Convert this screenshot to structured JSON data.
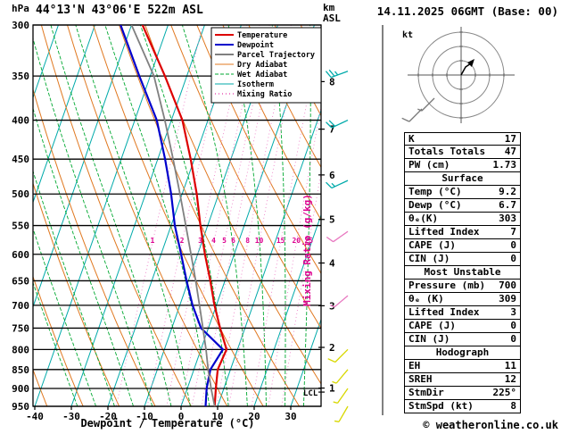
{
  "header": {
    "station_title": "44°13'N 43°06'E 522m ASL",
    "date_title": "14.11.2025 06GMT (Base: 00)"
  },
  "footer": {
    "copyright": "© weatheronline.co.uk"
  },
  "axes": {
    "pressure_unit": "hPa",
    "alt_unit_line1": "km",
    "alt_unit_line2": "ASL",
    "x_label": "Dewpoint / Temperature (°C)",
    "mixing_ratio_label": "Mixing Ratio (g/kg)",
    "lcl_label": "LCL",
    "hodo_unit": "kt"
  },
  "legend": {
    "items": [
      {
        "label": "Temperature",
        "color": "#DD0000",
        "width": 2,
        "dash": ""
      },
      {
        "label": "Dewpoint",
        "color": "#0000CC",
        "width": 2,
        "dash": ""
      },
      {
        "label": "Parcel Trajectory",
        "color": "#808080",
        "width": 2,
        "dash": ""
      },
      {
        "label": "Dry Adiabat",
        "color": "#E07820",
        "width": 1,
        "dash": ""
      },
      {
        "label": "Wet Adiabat",
        "color": "#00A830",
        "width": 1,
        "dash": "4 2"
      },
      {
        "label": "Isotherm",
        "color": "#00AAAA",
        "width": 1,
        "dash": ""
      },
      {
        "label": "Mixing Ratio",
        "color": "#DD0090",
        "width": 1,
        "dash": "1 3"
      }
    ]
  },
  "chart_data": {
    "type": "line",
    "title": "Skew-T log-P sounding 44°13'N 43°06'E 522m ASL",
    "xlabel": "Dewpoint / Temperature (°C)",
    "ylabel": "hPa",
    "pressure_range": [
      300,
      950
    ],
    "temp_axis_range": [
      -40,
      38
    ],
    "x_ticks": [
      -40,
      -30,
      -20,
      -10,
      0,
      10,
      20,
      30
    ],
    "pressure_levels": [
      300,
      350,
      400,
      450,
      500,
      550,
      600,
      650,
      700,
      750,
      800,
      850,
      900,
      950
    ],
    "km_asl_ticks": [
      8,
      7,
      6,
      5,
      4,
      3,
      2,
      1
    ],
    "lcl_pressure": 910,
    "mixing_ratio_labels": [
      1,
      2,
      3,
      4,
      5,
      6,
      8,
      10,
      15,
      20,
      25
    ],
    "colors": {
      "isotherm": "#00AAAA",
      "dry_adiabat": "#E07820",
      "wet_adiabat": "#00A830",
      "mixing_ratio_line": "#EE82C8",
      "mixing_ratio_label": "#DD0090",
      "barb_levels": {
        "high": "#00AAAA",
        "mid": "#E878C0",
        "low": "#D8D800"
      }
    },
    "series": [
      {
        "name": "Temperature",
        "color": "#DD0000",
        "width": 2.2,
        "points": [
          [
            950,
            9.2
          ],
          [
            900,
            7.8
          ],
          [
            850,
            6.5
          ],
          [
            800,
            7.0
          ],
          [
            750,
            3.2
          ],
          [
            700,
            -0.5
          ],
          [
            650,
            -4
          ],
          [
            600,
            -8
          ],
          [
            550,
            -12
          ],
          [
            500,
            -16
          ],
          [
            450,
            -21
          ],
          [
            400,
            -27
          ],
          [
            350,
            -36
          ],
          [
            300,
            -47
          ]
        ]
      },
      {
        "name": "Dewpoint",
        "color": "#0000CC",
        "width": 2.2,
        "points": [
          [
            950,
            6.7
          ],
          [
            900,
            5.3
          ],
          [
            850,
            4.5
          ],
          [
            800,
            6.0
          ],
          [
            750,
            -2
          ],
          [
            700,
            -6.5
          ],
          [
            650,
            -10.5
          ],
          [
            600,
            -14.5
          ],
          [
            550,
            -19
          ],
          [
            500,
            -23
          ],
          [
            450,
            -28
          ],
          [
            400,
            -34
          ],
          [
            350,
            -43
          ],
          [
            300,
            -53
          ]
        ]
      },
      {
        "name": "Parcel Trajectory",
        "color": "#808080",
        "width": 1.8,
        "points": [
          [
            950,
            9.2
          ],
          [
            900,
            6.5
          ],
          [
            850,
            3.9
          ],
          [
            800,
            1.4
          ],
          [
            750,
            -1.5
          ],
          [
            700,
            -4.6
          ],
          [
            650,
            -8
          ],
          [
            600,
            -11.8
          ],
          [
            550,
            -16
          ],
          [
            500,
            -20.6
          ],
          [
            450,
            -25.8
          ],
          [
            400,
            -31.8
          ],
          [
            350,
            -39
          ],
          [
            300,
            -50
          ]
        ]
      }
    ],
    "wind_barbs": [
      {
        "p": 345,
        "spd": 25,
        "dir": 250,
        "level": "high"
      },
      {
        "p": 400,
        "spd": 20,
        "dir": 245,
        "level": "high"
      },
      {
        "p": 480,
        "spd": 15,
        "dir": 245,
        "level": "high"
      },
      {
        "p": 560,
        "spd": 10,
        "dir": 235,
        "level": "mid"
      },
      {
        "p": 680,
        "spd": 5,
        "dir": 230,
        "level": "mid"
      },
      {
        "p": 800,
        "spd": 10,
        "dir": 225,
        "level": "low"
      },
      {
        "p": 850,
        "spd": 5,
        "dir": 220,
        "level": "low"
      },
      {
        "p": 900,
        "spd": 5,
        "dir": 215,
        "level": "low"
      },
      {
        "p": 950,
        "spd": 8,
        "dir": 210,
        "level": "low"
      }
    ]
  },
  "hodograph": {
    "rings": [
      16,
      32,
      48
    ],
    "trace": [
      [
        0,
        0
      ],
      [
        5,
        -9
      ],
      [
        11,
        -13
      ]
    ],
    "barbs": [
      [
        -30,
        26,
        225,
        5
      ],
      [
        -44,
        38,
        225,
        10
      ]
    ]
  },
  "panel": {
    "rows": [
      [
        "K",
        "17"
      ],
      [
        "Totals Totals",
        "47"
      ],
      [
        "PW (cm)",
        "1.73"
      ]
    ],
    "sections": [
      {
        "title": "Surface",
        "rows": [
          [
            "Temp (°C)",
            "9.2"
          ],
          [
            "Dewp (°C)",
            "6.7"
          ],
          [
            "θₑ(K)",
            "303"
          ],
          [
            "Lifted Index",
            "7"
          ],
          [
            "CAPE (J)",
            "0"
          ],
          [
            "CIN (J)",
            "0"
          ]
        ]
      },
      {
        "title": "Most Unstable",
        "rows": [
          [
            "Pressure (mb)",
            "700"
          ],
          [
            "θₑ (K)",
            "309"
          ],
          [
            "Lifted Index",
            "3"
          ],
          [
            "CAPE (J)",
            "0"
          ],
          [
            "CIN (J)",
            "0"
          ]
        ]
      },
      {
        "title": "Hodograph",
        "rows": [
          [
            "EH",
            "11"
          ],
          [
            "SREH",
            "12"
          ],
          [
            "StmDir",
            "225°"
          ],
          [
            "StmSpd (kt)",
            "8"
          ]
        ]
      }
    ]
  }
}
